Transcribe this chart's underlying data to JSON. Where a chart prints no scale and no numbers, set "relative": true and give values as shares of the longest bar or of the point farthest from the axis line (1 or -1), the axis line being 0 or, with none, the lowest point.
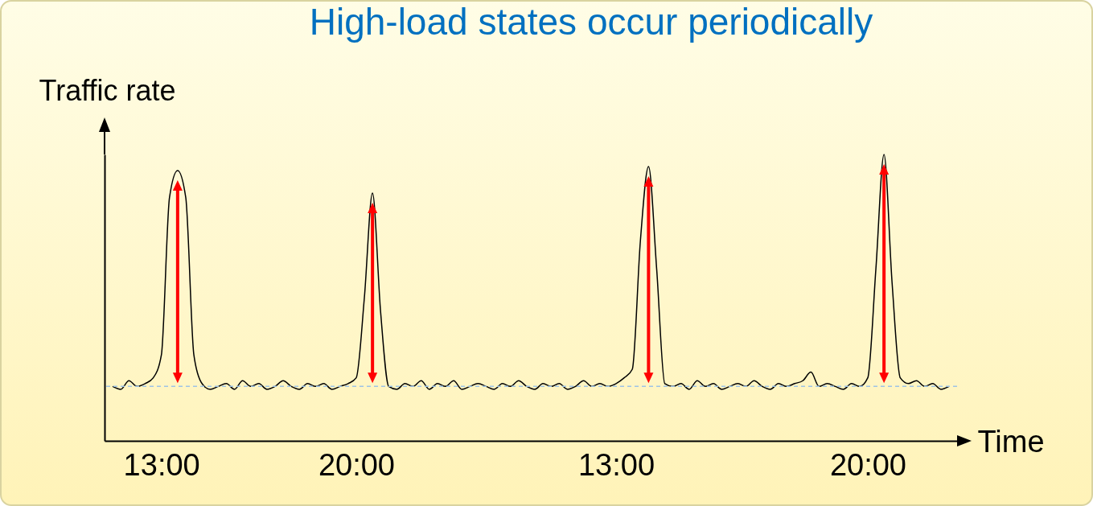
{
  "chart_data": {
    "type": "line",
    "title": "High-load states occur periodically",
    "xlabel": "Time",
    "ylabel": "Traffic rate",
    "relative": true,
    "categories": [
      null,
      null,
      null,
      null,
      null,
      null,
      "13:00",
      null,
      null,
      null,
      null,
      null,
      null,
      null,
      null,
      null,
      null,
      null,
      null,
      null,
      null,
      null,
      null,
      null,
      null,
      null,
      null,
      null,
      null,
      null,
      "20:00",
      null,
      null,
      null,
      null,
      null,
      null,
      null,
      null,
      null,
      null,
      null,
      null,
      null,
      null,
      null,
      null,
      null,
      null,
      null,
      null,
      null,
      null,
      null,
      null,
      null,
      null,
      null,
      null,
      null,
      null,
      null,
      "13:00",
      null,
      null,
      null,
      null,
      null,
      null,
      null,
      null,
      null,
      null,
      null,
      null,
      null,
      null,
      null,
      null,
      null,
      null,
      null,
      null,
      null,
      null,
      null,
      null,
      null,
      null,
      null,
      null,
      null,
      null,
      "20:00",
      null,
      null,
      null,
      null,
      null,
      null,
      null,
      null,
      null,
      null
    ],
    "series": [
      {
        "color": "#000000",
        "values": [
          0.19,
          0.18,
          0.21,
          0.19,
          0.2,
          0.22,
          0.3,
          0.85,
          0.944,
          0.85,
          0.3,
          0.2,
          0.18,
          0.19,
          0.2,
          0.18,
          0.21,
          0.19,
          0.2,
          0.18,
          0.19,
          0.21,
          0.19,
          0.18,
          0.2,
          0.19,
          0.2,
          0.18,
          0.19,
          0.2,
          0.22,
          0.5,
          0.865,
          0.45,
          0.19,
          0.18,
          0.2,
          0.19,
          0.21,
          0.18,
          0.2,
          0.19,
          0.21,
          0.18,
          0.19,
          0.2,
          0.19,
          0.18,
          0.2,
          0.19,
          0.21,
          0.19,
          0.18,
          0.2,
          0.19,
          0.2,
          0.18,
          0.19,
          0.21,
          0.19,
          0.2,
          0.19,
          0.2,
          0.22,
          0.25,
          0.7,
          0.958,
          0.6,
          0.2,
          0.19,
          0.2,
          0.18,
          0.21,
          0.19,
          0.2,
          0.18,
          0.19,
          0.2,
          0.19,
          0.21,
          0.19,
          0.18,
          0.2,
          0.19,
          0.2,
          0.21,
          0.24,
          0.19,
          0.2,
          0.19,
          0.18,
          0.2,
          0.19,
          0.22,
          0.6,
          1,
          0.55,
          0.22,
          0.2,
          0.21,
          0.19,
          0.2,
          0.18,
          0.19
        ]
      }
    ],
    "ref_lines": [
      {
        "axis": "y",
        "value": 0.19,
        "color": "#9dc3e6",
        "line_style": "dashed"
      }
    ]
  }
}
